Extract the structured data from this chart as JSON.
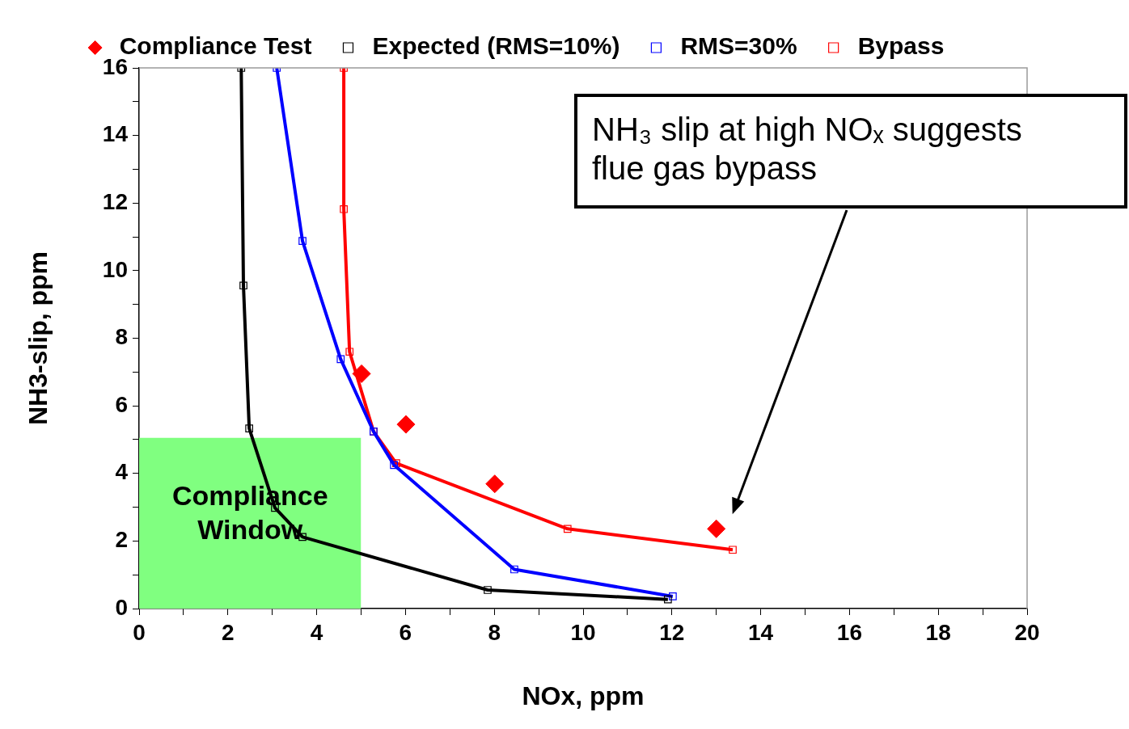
{
  "chart_data": {
    "type": "line",
    "xlabel": "NOx, ppm",
    "ylabel": "NH3-slip, ppm",
    "xlim": [
      0,
      20
    ],
    "ylim": [
      0,
      16
    ],
    "xticks": [
      0,
      {
        "value": 1,
        "label": null
      },
      2,
      {
        "value": 3,
        "label": null
      },
      4,
      {
        "value": 5,
        "label": null
      },
      6,
      {
        "value": 7,
        "label": null
      },
      8,
      {
        "value": 9,
        "label": null
      },
      10,
      {
        "value": 11,
        "label": null
      },
      12,
      {
        "value": 13,
        "label": null
      },
      14,
      {
        "value": 15,
        "label": null
      },
      16,
      {
        "value": 17,
        "label": null
      },
      18,
      {
        "value": 19,
        "label": null
      },
      20
    ],
    "yticks": [
      0,
      {
        "value": 1,
        "label": null
      },
      2,
      {
        "value": 3,
        "label": null
      },
      4,
      {
        "value": 5,
        "label": null
      },
      6,
      {
        "value": 7,
        "label": null
      },
      8,
      {
        "value": 9,
        "label": null
      },
      10,
      {
        "value": 11,
        "label": null
      },
      12,
      {
        "value": 13,
        "label": null
      },
      14,
      {
        "value": 15,
        "label": null
      },
      16
    ],
    "legend": "top",
    "series": [
      {
        "type": "area",
        "color": "#80ff80",
        "x": [
          0,
          5
        ],
        "values": [
          5.05,
          5.05
        ]
      },
      {
        "name": "Compliance Test",
        "type": "scatter",
        "marker": "diamond",
        "color": "#ff0000",
        "x": [
          5.01,
          6.01,
          8.01,
          13.0
        ],
        "values": [
          6.95,
          5.45,
          3.69,
          2.36
        ]
      },
      {
        "name": "Expected (RMS=10%)",
        "type": "line",
        "marker": "square",
        "color": "#000000",
        "x": [
          2.3,
          2.35,
          2.48,
          3.06,
          3.68,
          7.85,
          11.91
        ],
        "values": [
          16,
          9.56,
          5.33,
          2.98,
          2.12,
          0.55,
          0.27
        ]
      },
      {
        "name": "RMS=30%",
        "type": "line",
        "marker": "square",
        "color": "#0000ff",
        "x": [
          3.1,
          3.68,
          4.54,
          5.28,
          5.74,
          8.45,
          12.02
        ],
        "values": [
          16,
          10.88,
          7.38,
          5.24,
          4.25,
          1.16,
          0.36
        ]
      },
      {
        "name": "Bypass",
        "type": "line",
        "marker": "square",
        "color": "#ff0000",
        "x": [
          4.61,
          4.61,
          4.74,
          5.28,
          5.79,
          9.65,
          13.37
        ],
        "values": [
          16,
          11.82,
          7.6,
          5.24,
          4.3,
          2.36,
          1.74
        ]
      }
    ],
    "annotations": [
      "Compliance Window",
      "NH₃ slip at high NOₓ suggests flue gas bypass"
    ]
  }
}
